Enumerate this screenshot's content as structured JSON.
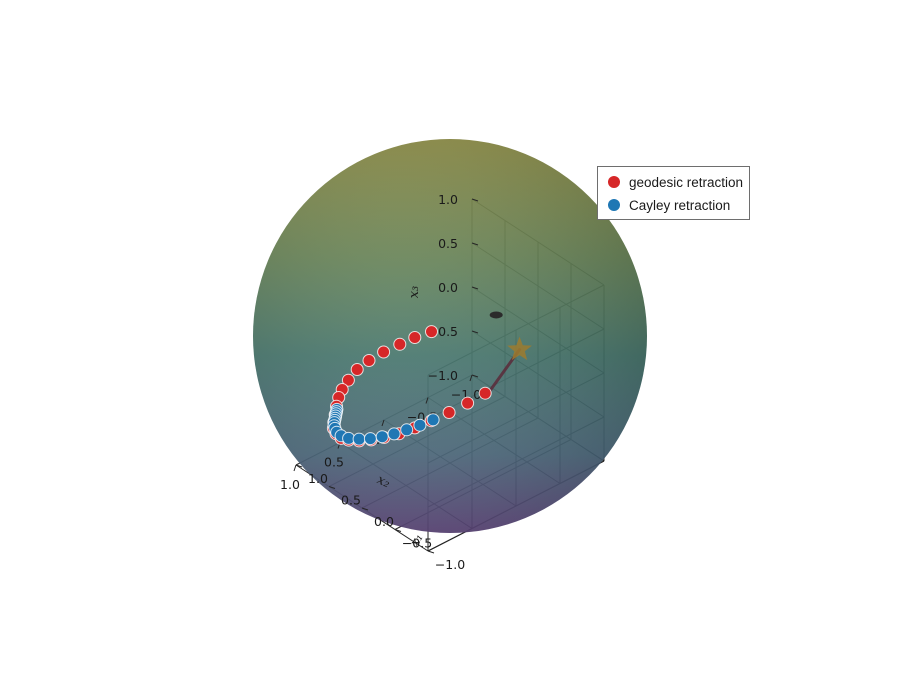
{
  "chart_data": {
    "type": "scatter3d",
    "title": "",
    "xlabel": "x₂",
    "ylabel": "x₁",
    "zlabel": "x₃",
    "xlim": [
      -1.0,
      1.0
    ],
    "ylim": [
      -1.0,
      1.0
    ],
    "zlim": [
      -1.0,
      1.0
    ],
    "x_ticks": [
      "−1.0",
      "−0.5",
      "0.0",
      "0.5",
      "1.0"
    ],
    "y_ticks": [
      "−1.0",
      "−0.5",
      "0.0",
      "0.5",
      "1.0"
    ],
    "z_ticks": [
      "−1.0",
      "−0.5",
      "0.0",
      "0.5",
      "1.0"
    ],
    "grid": true,
    "legend_position": "top-right",
    "surface": "unit sphere",
    "series": [
      {
        "name": "geodesic retraction",
        "color": "#d62728",
        "points": [
          [
            0.45,
            -0.32,
            0.88
          ],
          [
            0.58,
            -0.24,
            0.84
          ],
          [
            0.69,
            -0.16,
            0.78
          ],
          [
            0.8,
            -0.06,
            0.7
          ],
          [
            0.89,
            0.04,
            0.6
          ],
          [
            0.95,
            0.14,
            0.48
          ],
          [
            0.99,
            0.22,
            0.34
          ],
          [
            1.0,
            0.3,
            0.2
          ],
          [
            0.98,
            0.38,
            0.06
          ],
          [
            0.96,
            0.44,
            -0.08
          ],
          [
            0.93,
            0.5,
            -0.22
          ],
          [
            0.9,
            0.56,
            -0.35
          ],
          [
            0.86,
            0.62,
            -0.47
          ],
          [
            0.8,
            0.66,
            -0.58
          ],
          [
            0.72,
            0.69,
            -0.69
          ],
          [
            0.62,
            0.71,
            -0.77
          ],
          [
            0.5,
            0.71,
            -0.84
          ],
          [
            0.37,
            0.7,
            -0.89
          ],
          [
            0.24,
            0.68,
            -0.92
          ],
          [
            0.1,
            0.64,
            -0.93
          ],
          [
            -0.05,
            0.6,
            -0.92
          ],
          [
            -0.2,
            0.55,
            -0.89
          ],
          [
            -0.35,
            0.48,
            -0.84
          ],
          [
            -0.5,
            0.4,
            -0.77
          ],
          [
            -0.64,
            0.32,
            -0.69
          ]
        ]
      },
      {
        "name": "Cayley retraction",
        "color": "#1f77b4",
        "points": [
          [
            0.97,
            0.42,
            -0.1
          ],
          [
            0.96,
            0.44,
            -0.14
          ],
          [
            0.95,
            0.46,
            -0.18
          ],
          [
            0.94,
            0.48,
            -0.22
          ],
          [
            0.93,
            0.5,
            -0.26
          ],
          [
            0.92,
            0.52,
            -0.3
          ],
          [
            0.91,
            0.54,
            -0.34
          ],
          [
            0.89,
            0.57,
            -0.4
          ],
          [
            0.85,
            0.61,
            -0.47
          ],
          [
            0.8,
            0.65,
            -0.56
          ],
          [
            0.72,
            0.69,
            -0.66
          ],
          [
            0.62,
            0.71,
            -0.75
          ],
          [
            0.5,
            0.71,
            -0.82
          ],
          [
            0.38,
            0.7,
            -0.87
          ],
          [
            0.26,
            0.68,
            -0.9
          ],
          [
            0.14,
            0.66,
            -0.92
          ],
          [
            0.02,
            0.63,
            -0.92
          ],
          [
            -0.1,
            0.59,
            -0.91
          ],
          [
            -0.22,
            0.55,
            -0.89
          ]
        ]
      }
    ],
    "annotations": {
      "start_marker": "star",
      "start_point": [
        -0.94,
        0.2,
        -0.29
      ],
      "tangent_end": [
        -0.66,
        0.3,
        -0.69
      ],
      "top_marker_point": [
        -0.15,
        -0.5,
        0.85
      ]
    }
  }
}
